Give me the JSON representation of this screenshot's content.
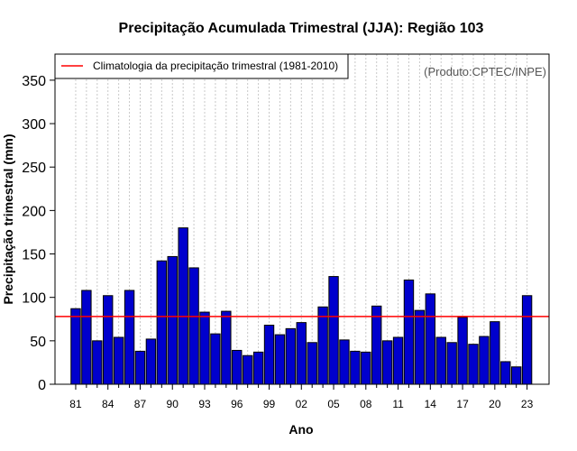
{
  "chart_data": {
    "type": "bar",
    "title": "Precipitação Acumulada Trimestral (JJA): Região 103",
    "xlabel": "Ano",
    "ylabel": "Precipitação trimestral (mm)",
    "ylim": [
      0,
      380
    ],
    "yticks": [
      0,
      50,
      100,
      150,
      200,
      250,
      300,
      350
    ],
    "categories": [
      "81",
      "82",
      "83",
      "84",
      "85",
      "86",
      "87",
      "88",
      "89",
      "90",
      "91",
      "92",
      "93",
      "94",
      "95",
      "96",
      "97",
      "98",
      "99",
      "00",
      "01",
      "02",
      "03",
      "04",
      "05",
      "06",
      "07",
      "08",
      "09",
      "10",
      "11",
      "12",
      "13",
      "14",
      "15",
      "16",
      "17",
      "18",
      "19",
      "20",
      "21",
      "22",
      "23"
    ],
    "xtick_labels": [
      "81",
      "84",
      "87",
      "90",
      "93",
      "96",
      "99",
      "02",
      "05",
      "08",
      "11",
      "14",
      "17",
      "20",
      "23"
    ],
    "values": [
      87,
      108,
      50,
      102,
      54,
      108,
      38,
      52,
      142,
      147,
      180,
      134,
      83,
      58,
      84,
      39,
      33,
      37,
      68,
      57,
      64,
      71,
      48,
      89,
      124,
      51,
      38,
      37,
      90,
      50,
      54,
      120,
      85,
      104,
      54,
      48,
      77,
      46,
      55,
      72,
      26,
      20,
      102
    ],
    "bar_color": "#0000cd",
    "reference_line": {
      "label": "Climatologia da precipitação trimestral (1981-2010)",
      "value": 78,
      "color": "#ff0000"
    },
    "credit": "(Produto:CPTEC/INPE)",
    "grid": "vertical-dotted",
    "legend_position": "top-left"
  }
}
